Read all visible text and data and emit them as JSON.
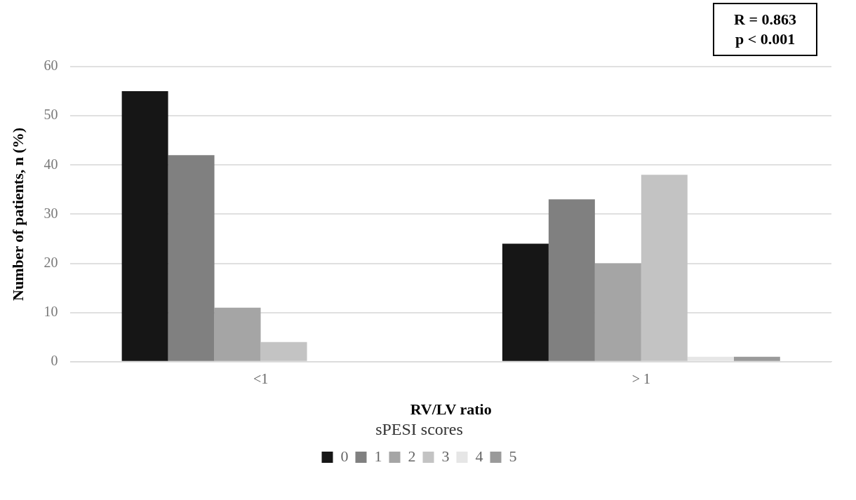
{
  "chart_data": {
    "type": "bar",
    "xlabel": "RV/LV ratio",
    "ylabel": "Number of patients, n (%)",
    "legend_title": "sPESI scores",
    "categories": [
      "<1",
      "> 1"
    ],
    "series": [
      {
        "name": "0",
        "color": "#161616",
        "values": [
          55,
          24
        ]
      },
      {
        "name": "1",
        "color": "#808080",
        "values": [
          42,
          33
        ]
      },
      {
        "name": "2",
        "color": "#a5a5a5",
        "values": [
          11,
          20
        ]
      },
      {
        "name": "3",
        "color": "#c3c3c3",
        "values": [
          4,
          38
        ]
      },
      {
        "name": "4",
        "color": "#e6e6e6",
        "values": [
          0,
          1
        ]
      },
      {
        "name": "5",
        "color": "#9a9a9a",
        "values": [
          0,
          1
        ]
      }
    ],
    "ylim": [
      0,
      60
    ],
    "yticks": [
      0,
      10,
      20,
      30,
      40,
      50,
      60
    ],
    "grid": "y",
    "legend": "bottom",
    "annotations": [
      "R = 0.863",
      "p < 0.001"
    ]
  }
}
